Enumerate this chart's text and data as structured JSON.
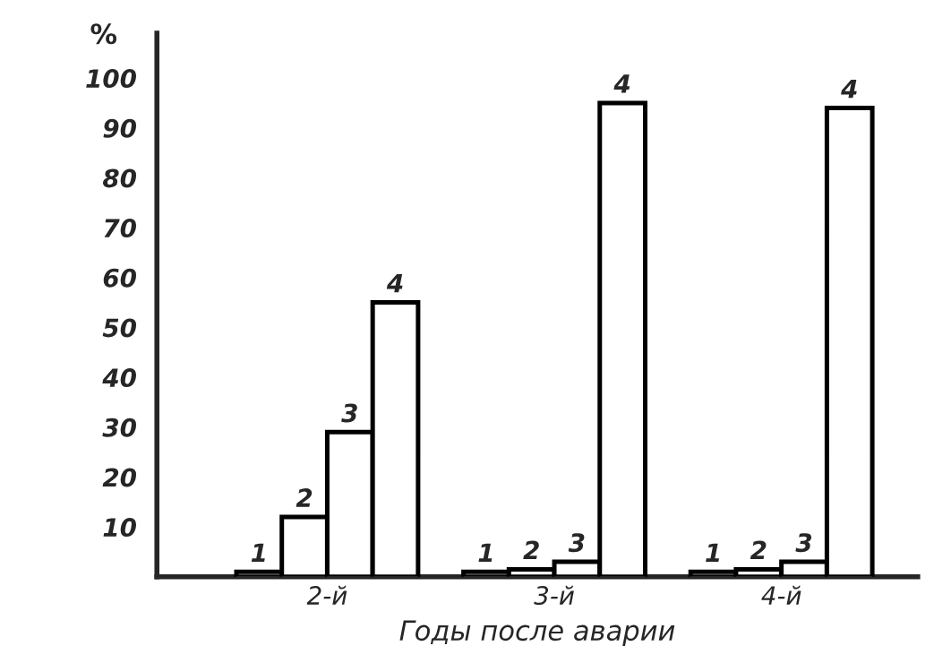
{
  "chart_data": {
    "type": "bar",
    "xlabel": "Годы после аварии",
    "ylabel": "%",
    "categories": [
      "2-й",
      "3-й",
      "4-й"
    ],
    "series": [
      {
        "name": "1",
        "color": "#ffffff",
        "values": [
          1,
          1,
          1
        ]
      },
      {
        "name": "2",
        "color": "#ffffff",
        "values": [
          12,
          1.5,
          1.5
        ]
      },
      {
        "name": "3",
        "color": "#ffffff",
        "values": [
          29,
          3,
          3
        ]
      },
      {
        "name": "4",
        "color": "#ffffff",
        "values": [
          55,
          95,
          94
        ]
      }
    ],
    "ylim": [
      0,
      109
    ],
    "yticks": [
      10,
      20,
      30,
      40,
      50,
      60,
      70,
      80,
      90,
      100
    ],
    "grid": false,
    "legend": false
  }
}
